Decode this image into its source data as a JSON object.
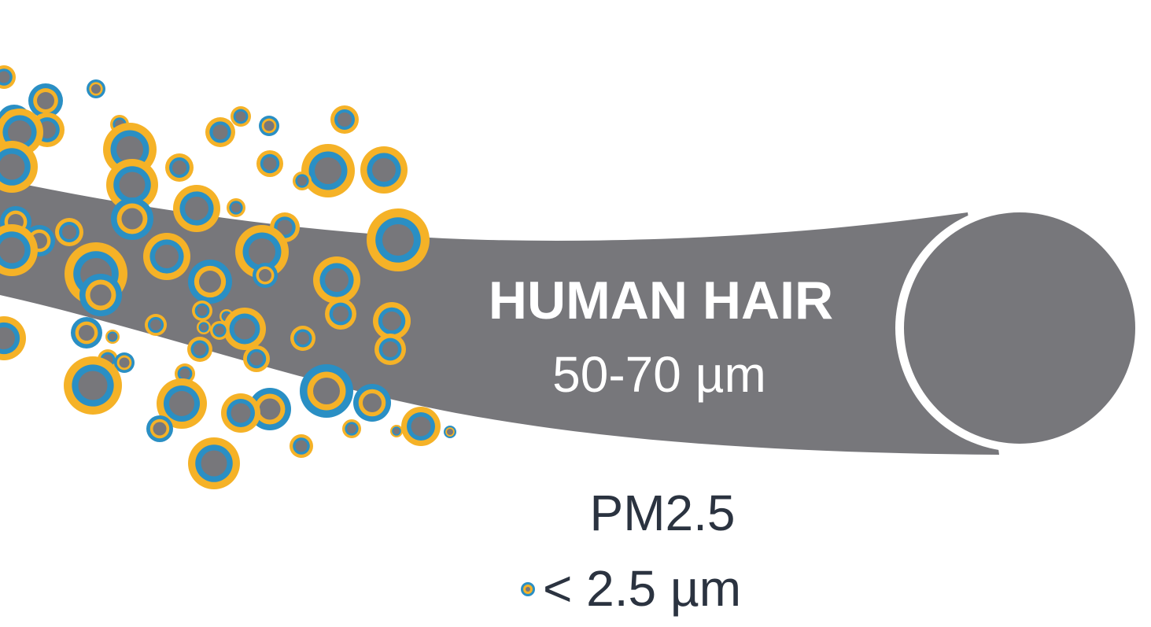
{
  "hair": {
    "title": "HUMAN HAIR",
    "size": "50-70 µm"
  },
  "pm": {
    "title": "PM2.5",
    "size": "< 2.5 µm"
  },
  "colors": {
    "hair": "#77777b",
    "background": "#ffffff",
    "particle_orange": "#f5b227",
    "particle_blue": "#2a8fc4",
    "particle_core": "#77777b",
    "pm_text": "#2b3340"
  }
}
